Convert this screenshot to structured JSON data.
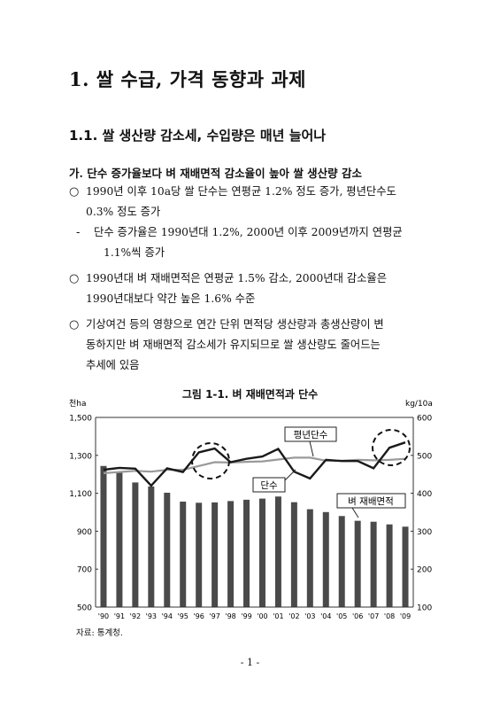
{
  "heading1": "1. 쌀 수급, 가격 동향과 과제",
  "heading2": "1.1. 쌀 생산량 감소세, 수입량은 매년 늘어나",
  "heading3": "가. 단수 증가율보다 벼 재배면적 감소율이 높아 쌀 생산량 감소",
  "bullets": [
    {
      "mark": "○",
      "lines": [
        "1990년 이후 10a당 쌀 단수는 연평균 1.2% 정도 증가, 평년단수도",
        "0.3% 정도 증가"
      ]
    },
    {
      "mark": "-",
      "lines": [
        "단수 증가율은 1990년대 1.2%, 2000년 이후 2009년까지 연평균",
        "1.1%씩 증가"
      ]
    },
    {
      "mark": "○",
      "lines": [
        "1990년대 벼 재배면적은 연평균 1.5% 감소, 2000년대 감소율은",
        "1990년대보다 약간 높은 1.6% 수준"
      ]
    },
    {
      "mark": "○",
      "lines": [
        "기상여건 등의 영향으로 연간 단위 면적당 생산량과 총생산량이 변",
        "동하지만 벼 재배면적 감소세가 유지되므로 쌀 생산량도 줄어드는",
        "추세에 있음"
      ]
    }
  ],
  "figure_title": "그림 1-1. 벼 재배면적과 단수",
  "source": "자료: 통계청.",
  "page_number": "- 1 -",
  "chart_data": {
    "type": "bar",
    "categories": [
      "'90",
      "'91",
      "'92",
      "'93",
      "'94",
      "'95",
      "'96",
      "'97",
      "'98",
      "'99",
      "'00",
      "'01",
      "'02",
      "'03",
      "'04",
      "'05",
      "'06",
      "'07",
      "'08",
      "'09"
    ],
    "left_unit": "천ha",
    "right_unit": "kg/10a",
    "left_ticks": [
      "1,500",
      "1,300",
      "1,100",
      "900",
      "700",
      "500"
    ],
    "right_ticks": [
      "600",
      "500",
      "400",
      "300",
      "200",
      "100"
    ],
    "ylim_left": [
      500,
      1500
    ],
    "ylim_right": [
      100,
      600
    ],
    "series": [
      {
        "name": "벼 재배면적",
        "type": "bar",
        "axis": "left",
        "values": [
          1244,
          1208,
          1157,
          1136,
          1103,
          1056,
          1050,
          1052,
          1059,
          1066,
          1072,
          1083,
          1053,
          1016,
          1001,
          980,
          955,
          950,
          936,
          924
        ]
      },
      {
        "name": "단수",
        "type": "line",
        "axis": "right",
        "values": [
          462,
          467,
          465,
          420,
          466,
          456,
          508,
          518,
          482,
          491,
          497,
          517,
          457,
          439,
          488,
          485,
          485,
          466,
          520,
          534
        ]
      },
      {
        "name": "평년단수",
        "type": "line",
        "axis": "right",
        "values": [
          453,
          456,
          459,
          457,
          462,
          462,
          472,
          482,
          481,
          483,
          484,
          489,
          494,
          494,
          486,
          486,
          488,
          487,
          488,
          491
        ]
      }
    ],
    "legend_labels": {
      "avg_yield": "평년단수",
      "yield": "단수",
      "area": "벼 재배면적"
    },
    "grid": false
  }
}
